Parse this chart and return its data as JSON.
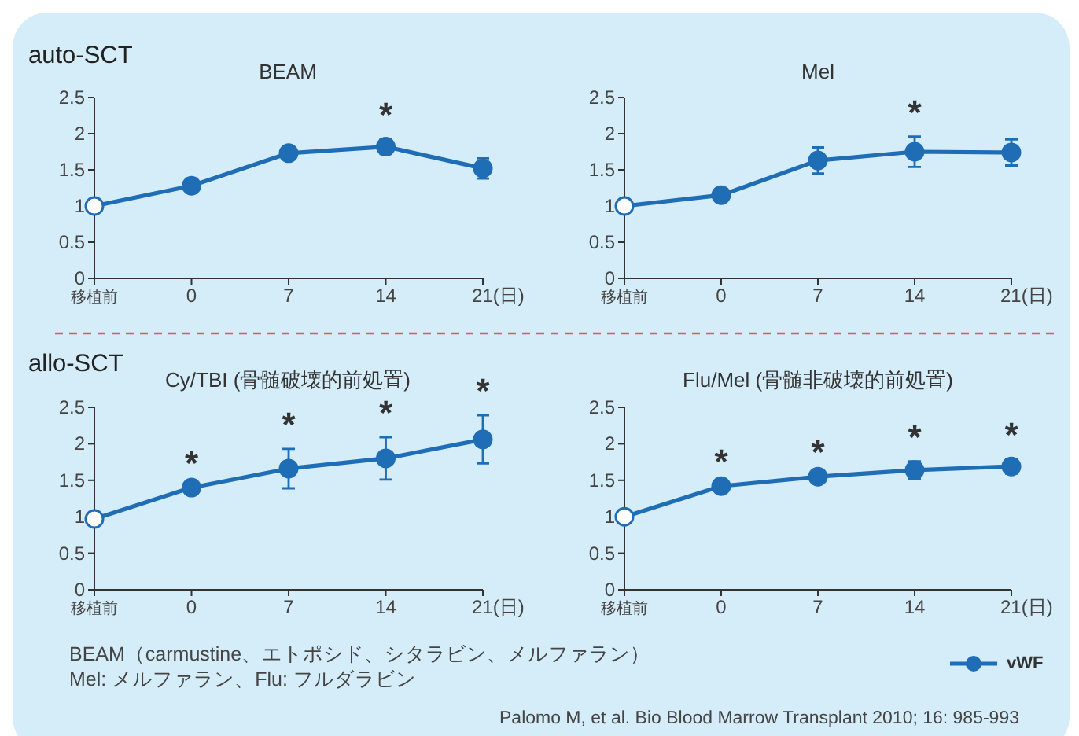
{
  "chart_data": [
    {
      "type": "line",
      "title": "BEAM",
      "categories": [
        "移植前",
        "0",
        "7",
        "14",
        "21(日)"
      ],
      "ylim": [
        0,
        2.5
      ],
      "yticks": [
        0,
        0.5,
        1,
        1.5,
        2,
        2.5
      ],
      "marker": "circle",
      "grid": false,
      "legend": false,
      "series": [
        {
          "color": "#1f6db5",
          "colors": [
            "#ffffff",
            "#1f6db5",
            "#1f6db5",
            "#1f6db5",
            "#1f6db5"
          ],
          "values": [
            1.0,
            1.28,
            1.73,
            1.82,
            1.52
          ],
          "errors": [
            null,
            0.1,
            0.04,
            0.1,
            0.14
          ]
        }
      ],
      "annotations": [
        "auto-SCT",
        {
          "text": "*",
          "x": "14",
          "y": 1.82
        }
      ]
    },
    {
      "type": "line",
      "title": "Mel",
      "categories": [
        "移植前",
        "0",
        "7",
        "14",
        "21(日)"
      ],
      "ylim": [
        0,
        2.5
      ],
      "yticks": [
        0,
        0.5,
        1,
        1.5,
        2,
        2.5
      ],
      "marker": "circle",
      "grid": false,
      "legend": false,
      "series": [
        {
          "color": "#1f6db5",
          "colors": [
            "#ffffff",
            "#1f6db5",
            "#1f6db5",
            "#1f6db5",
            "#1f6db5"
          ],
          "values": [
            1.0,
            1.15,
            1.63,
            1.75,
            1.74
          ],
          "errors": [
            null,
            null,
            0.18,
            0.21,
            0.18
          ]
        }
      ],
      "annotations": [
        {
          "text": "*",
          "x": "14",
          "y": 1.75
        }
      ]
    },
    {
      "type": "line",
      "title": "Cy/TBI (骨髄破壊的前処置)",
      "categories": [
        "移植前",
        "0",
        "7",
        "14",
        "21(日)"
      ],
      "ylim": [
        0,
        2.5
      ],
      "yticks": [
        0,
        0.5,
        1,
        1.5,
        2,
        2.5
      ],
      "marker": "circle",
      "grid": false,
      "legend": false,
      "series": [
        {
          "color": "#1f6db5",
          "colors": [
            "#ffffff",
            "#1f6db5",
            "#1f6db5",
            "#1f6db5",
            "#1f6db5"
          ],
          "values": [
            0.97,
            1.4,
            1.66,
            1.8,
            2.06
          ],
          "errors": [
            null,
            null,
            0.27,
            0.29,
            0.33
          ]
        }
      ],
      "annotations": [
        "allo-SCT",
        {
          "text": "*",
          "x": "0",
          "y": 1.4
        },
        {
          "text": "*",
          "x": "7",
          "y": 1.66
        },
        {
          "text": "*",
          "x": "14",
          "y": 1.8
        },
        {
          "text": "*",
          "x": "21(日)",
          "y": 2.06
        }
      ]
    },
    {
      "type": "line",
      "title": "Flu/Mel (骨髄非破壊的前処置)",
      "categories": [
        "移植前",
        "0",
        "7",
        "14",
        "21(日)"
      ],
      "ylim": [
        0,
        2.5
      ],
      "yticks": [
        0,
        0.5,
        1,
        1.5,
        2,
        2.5
      ],
      "marker": "circle",
      "grid": false,
      "legend": "bottom right",
      "series": [
        {
          "name": "vWF",
          "color": "#1f6db5",
          "colors": [
            "#ffffff",
            "#1f6db5",
            "#1f6db5",
            "#1f6db5",
            "#1f6db5"
          ],
          "values": [
            1.0,
            1.42,
            1.55,
            1.64,
            1.69
          ],
          "errors": [
            null,
            null,
            null,
            0.12,
            0.1
          ]
        }
      ],
      "annotations": [
        "BEAM（carmustine、エトポシド、シタラビン、メルファラン）",
        "Mel: メルファラン、Flu: フルダラビン",
        "Palomo M, et al. Bio Blood Marrow Transplant 2010; 16: 985-993",
        {
          "text": "*",
          "x": "0",
          "y": 1.42
        },
        {
          "text": "*",
          "x": "7",
          "y": 1.55
        },
        {
          "text": "*",
          "x": "14",
          "y": 1.64
        },
        {
          "text": "*",
          "x": "21(日)",
          "y": 1.69
        }
      ]
    }
  ]
}
